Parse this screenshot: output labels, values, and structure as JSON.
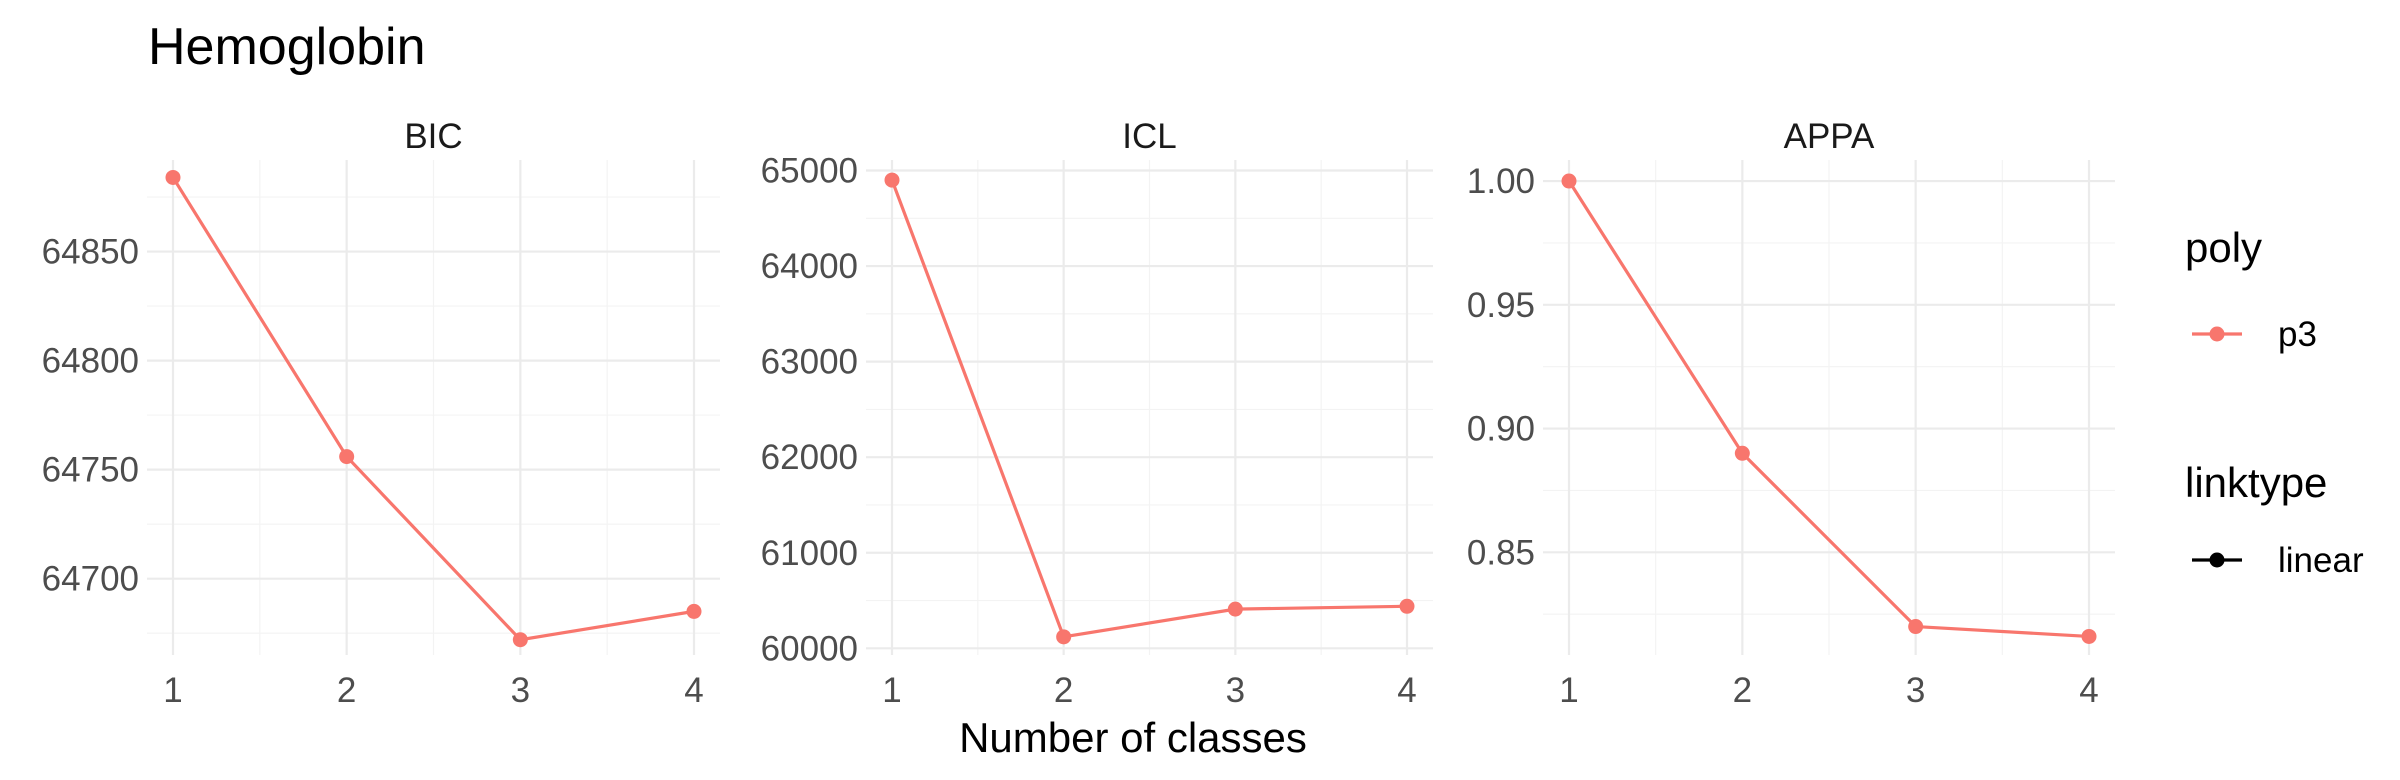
{
  "chart_data": {
    "type": "line",
    "title": "Hemoglobin",
    "xlabel": "Number of classes",
    "x": [
      1,
      2,
      3,
      4
    ],
    "x_ticks": [
      "1",
      "2",
      "3",
      "4"
    ],
    "grid": true,
    "legend_position": "right",
    "series_color": "#F8766D",
    "line_color_legend": "#000000",
    "panels": [
      {
        "strip": "BIC",
        "values": [
          64884,
          64756,
          64672,
          64685
        ],
        "ylim": [
          64665,
          64892
        ],
        "y_ticks": [
          64700,
          64750,
          64800,
          64850
        ],
        "y_tick_labels": [
          "64700",
          "64750",
          "64800",
          "64850"
        ]
      },
      {
        "strip": "ICL",
        "values": [
          64900,
          60120,
          60410,
          60440
        ],
        "ylim": [
          59930,
          65110
        ],
        "y_ticks": [
          60000,
          61000,
          62000,
          63000,
          64000,
          65000
        ],
        "y_tick_labels": [
          "60000",
          "61000",
          "62000",
          "63000",
          "64000",
          "65000"
        ]
      },
      {
        "strip": "APPA",
        "values": [
          1.0,
          0.89,
          0.82,
          0.816
        ],
        "ylim": [
          0.8085,
          1.0085
        ],
        "y_ticks": [
          0.85,
          0.9,
          0.95,
          1.0
        ],
        "y_tick_labels": [
          "0.85",
          "0.90",
          "0.95",
          "1.00"
        ]
      }
    ],
    "legends": [
      {
        "title": "poly",
        "entries": [
          {
            "label": "p3",
            "glyph": "point-line",
            "color": "#F8766D"
          }
        ]
      },
      {
        "title": "linktype",
        "entries": [
          {
            "label": "linear",
            "glyph": "point-line",
            "color": "#000000"
          }
        ]
      }
    ]
  }
}
